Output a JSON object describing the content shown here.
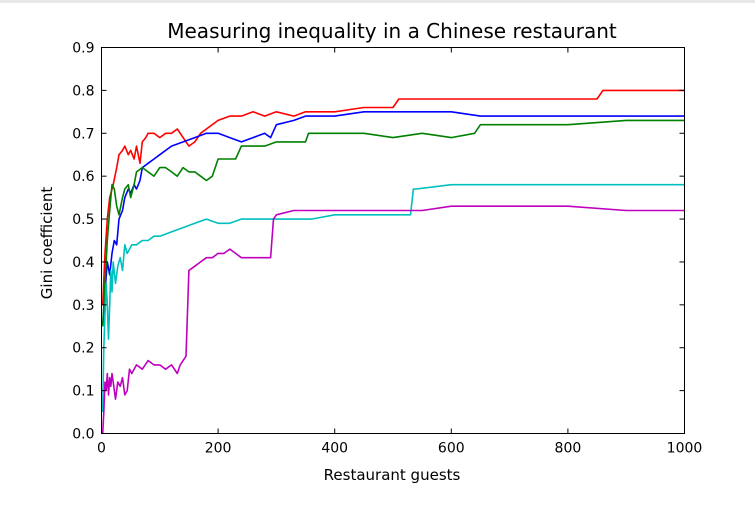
{
  "chart_data": {
    "type": "line",
    "title": "Measuring inequality in a Chinese restaurant",
    "xlabel": "Restaurant guests",
    "ylabel": "Gini coefficient",
    "xlim": [
      0,
      1000
    ],
    "ylim": [
      0.0,
      0.9
    ],
    "xticks": [
      "0",
      "200",
      "400",
      "600",
      "800",
      "1000"
    ],
    "yticks": [
      "0.0",
      "0.1",
      "0.2",
      "0.3",
      "0.4",
      "0.5",
      "0.6",
      "0.7",
      "0.8",
      "0.9"
    ],
    "grid": false,
    "legend": "none",
    "series": [
      {
        "color": "#ff0000",
        "x": [
          2,
          6,
          10,
          14,
          20,
          26,
          30,
          36,
          40,
          46,
          50,
          56,
          60,
          66,
          70,
          76,
          80,
          90,
          100,
          110,
          120,
          130,
          140,
          150,
          160,
          170,
          180,
          200,
          220,
          240,
          260,
          280,
          300,
          330,
          350,
          400,
          450,
          500,
          510,
          520,
          600,
          700,
          800,
          850,
          860,
          900,
          1000
        ],
        "y": [
          0.3,
          0.42,
          0.5,
          0.55,
          0.58,
          0.62,
          0.65,
          0.66,
          0.67,
          0.65,
          0.66,
          0.64,
          0.67,
          0.63,
          0.68,
          0.69,
          0.7,
          0.7,
          0.69,
          0.7,
          0.7,
          0.71,
          0.69,
          0.67,
          0.68,
          0.7,
          0.71,
          0.73,
          0.74,
          0.74,
          0.75,
          0.74,
          0.75,
          0.74,
          0.75,
          0.75,
          0.76,
          0.76,
          0.78,
          0.78,
          0.78,
          0.78,
          0.78,
          0.78,
          0.8,
          0.8,
          0.8
        ]
      },
      {
        "color": "#0000ff",
        "x": [
          2,
          6,
          10,
          14,
          18,
          22,
          26,
          30,
          36,
          40,
          46,
          50,
          56,
          60,
          66,
          70,
          80,
          90,
          100,
          120,
          140,
          160,
          180,
          200,
          220,
          240,
          260,
          280,
          290,
          300,
          330,
          350,
          400,
          450,
          500,
          550,
          600,
          650,
          700,
          800,
          900,
          1000
        ],
        "y": [
          0.25,
          0.33,
          0.4,
          0.37,
          0.42,
          0.45,
          0.44,
          0.5,
          0.52,
          0.55,
          0.57,
          0.56,
          0.58,
          0.57,
          0.59,
          0.62,
          0.63,
          0.64,
          0.65,
          0.67,
          0.68,
          0.69,
          0.7,
          0.7,
          0.69,
          0.68,
          0.69,
          0.7,
          0.69,
          0.72,
          0.73,
          0.74,
          0.74,
          0.75,
          0.75,
          0.75,
          0.75,
          0.74,
          0.74,
          0.74,
          0.74,
          0.74
        ]
      },
      {
        "color": "#008000",
        "x": [
          2,
          6,
          10,
          14,
          18,
          22,
          26,
          30,
          36,
          40,
          46,
          50,
          56,
          60,
          70,
          80,
          90,
          100,
          110,
          120,
          130,
          140,
          150,
          160,
          170,
          180,
          190,
          200,
          220,
          230,
          240,
          260,
          280,
          300,
          330,
          350,
          355,
          400,
          450,
          500,
          550,
          600,
          640,
          650,
          700,
          800,
          900,
          1000
        ],
        "y": [
          0.25,
          0.35,
          0.45,
          0.52,
          0.58,
          0.57,
          0.53,
          0.51,
          0.55,
          0.57,
          0.58,
          0.55,
          0.58,
          0.61,
          0.62,
          0.61,
          0.6,
          0.62,
          0.62,
          0.61,
          0.6,
          0.62,
          0.61,
          0.61,
          0.6,
          0.59,
          0.6,
          0.64,
          0.64,
          0.64,
          0.67,
          0.67,
          0.67,
          0.68,
          0.68,
          0.68,
          0.7,
          0.7,
          0.7,
          0.69,
          0.7,
          0.69,
          0.7,
          0.72,
          0.72,
          0.72,
          0.73,
          0.73
        ]
      },
      {
        "color": "#00bfbf",
        "x": [
          2,
          4,
          6,
          8,
          10,
          12,
          14,
          16,
          18,
          20,
          24,
          28,
          32,
          36,
          40,
          44,
          48,
          52,
          60,
          70,
          80,
          90,
          100,
          120,
          140,
          160,
          180,
          200,
          220,
          240,
          260,
          280,
          290,
          300,
          330,
          360,
          400,
          450,
          500,
          530,
          535,
          540,
          600,
          700,
          800,
          900,
          1000
        ],
        "y": [
          0.05,
          0.2,
          0.28,
          0.35,
          0.3,
          0.22,
          0.3,
          0.38,
          0.33,
          0.4,
          0.35,
          0.39,
          0.41,
          0.38,
          0.44,
          0.42,
          0.43,
          0.44,
          0.44,
          0.45,
          0.45,
          0.46,
          0.46,
          0.47,
          0.48,
          0.49,
          0.5,
          0.49,
          0.49,
          0.5,
          0.5,
          0.5,
          0.5,
          0.5,
          0.5,
          0.5,
          0.51,
          0.51,
          0.51,
          0.51,
          0.57,
          0.57,
          0.58,
          0.58,
          0.58,
          0.58,
          0.58
        ]
      },
      {
        "color": "#bf00bf",
        "x": [
          2,
          4,
          6,
          8,
          10,
          12,
          14,
          16,
          18,
          20,
          24,
          28,
          32,
          36,
          40,
          44,
          48,
          52,
          60,
          70,
          80,
          90,
          100,
          110,
          120,
          130,
          135,
          140,
          145,
          150,
          160,
          170,
          180,
          190,
          200,
          210,
          220,
          230,
          240,
          260,
          280,
          290,
          295,
          300,
          330,
          360,
          400,
          450,
          500,
          550,
          600,
          650,
          700,
          800,
          900,
          1000
        ],
        "y": [
          0.0,
          0.05,
          0.12,
          0.1,
          0.14,
          0.09,
          0.13,
          0.11,
          0.14,
          0.12,
          0.08,
          0.12,
          0.11,
          0.13,
          0.09,
          0.1,
          0.15,
          0.14,
          0.16,
          0.15,
          0.17,
          0.16,
          0.16,
          0.15,
          0.16,
          0.14,
          0.16,
          0.17,
          0.18,
          0.38,
          0.39,
          0.4,
          0.41,
          0.41,
          0.42,
          0.42,
          0.43,
          0.42,
          0.41,
          0.41,
          0.41,
          0.41,
          0.5,
          0.51,
          0.52,
          0.52,
          0.52,
          0.52,
          0.52,
          0.52,
          0.53,
          0.53,
          0.53,
          0.53,
          0.52,
          0.52
        ]
      }
    ]
  }
}
